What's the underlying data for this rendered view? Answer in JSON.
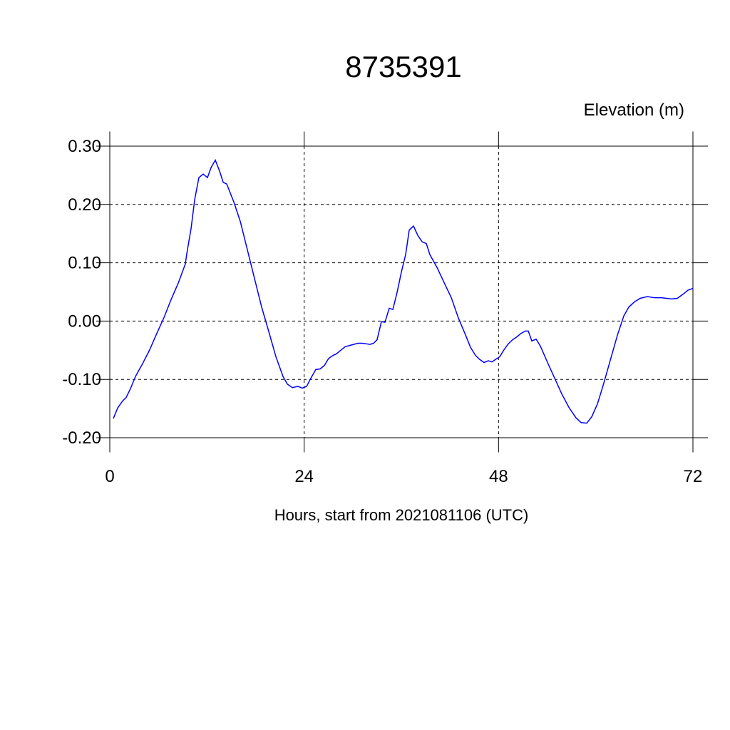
{
  "chart_data": {
    "type": "line",
    "title": "8735391",
    "ylabel": "Elevation (m)",
    "xlabel": "Hours, start from 2021081106 (UTC)",
    "xlim": [
      0,
      72
    ],
    "xticks": [
      0,
      24,
      48,
      72
    ],
    "ylim": [
      -0.225,
      0.325
    ],
    "yticks": [
      {
        "value": -0.2,
        "label": "-0.20"
      },
      {
        "value": -0.1,
        "label": "-0.10"
      },
      {
        "value": 0,
        "label": "0.00"
      },
      {
        "value": 0.1,
        "label": "0.10"
      },
      {
        "value": 0.2,
        "label": "0.20"
      },
      {
        "value": 0.3,
        "label": "0.30"
      }
    ],
    "grid": true,
    "x": [
      0.44,
      0.97,
      1.58,
      2.02,
      2.55,
      3.17,
      4.05,
      4.93,
      5.81,
      6.69,
      7.57,
      8.45,
      9.33,
      9.5,
      10.04,
      10.48,
      11.0,
      11.53,
      12.06,
      12.5,
      13.03,
      13.56,
      14.0,
      14.44,
      15.32,
      16.11,
      16.99,
      17.87,
      18.75,
      19.63,
      20.51,
      21.39,
      21.92,
      22.54,
      23.24,
      23.77,
      24.3,
      24.82,
      25.44,
      25.97,
      26.5,
      27.02,
      27.55,
      28.0,
      28.52,
      29.05,
      29.58,
      30.1,
      30.63,
      31.16,
      31.69,
      32.13,
      32.57,
      33.0,
      33.54,
      33.98,
      34.5,
      34.95,
      35.47,
      36.0,
      36.53,
      36.97,
      37.5,
      38.03,
      38.56,
      39.08,
      39.52,
      40.4,
      41.28,
      42.17,
      43.05,
      43.93,
      44.54,
      45.16,
      45.69,
      46.21,
      46.74,
      47.18,
      47.71,
      48.15,
      48.68,
      49.2,
      49.73,
      50.26,
      50.79,
      51.32,
      51.67,
      52.11,
      52.64,
      53.17,
      54.05,
      54.93,
      55.81,
      56.69,
      57.57,
      58.19,
      58.89,
      59.51,
      60.21,
      60.92,
      61.8,
      62.68,
      63.47,
      64.08,
      64.79,
      65.49,
      66.37,
      67.25,
      68.13,
      68.75,
      69.37,
      70.07,
      70.77,
      71.39,
      72.0
    ],
    "series": [
      {
        "name": "Elevation",
        "color": "#0000ff",
        "values": [
          -0.167,
          -0.149,
          -0.137,
          -0.131,
          -0.116,
          -0.095,
          -0.073,
          -0.049,
          -0.021,
          0.006,
          0.037,
          0.065,
          0.098,
          0.115,
          0.159,
          0.208,
          0.246,
          0.252,
          0.246,
          0.263,
          0.276,
          0.257,
          0.238,
          0.235,
          0.204,
          0.171,
          0.122,
          0.073,
          0.024,
          -0.018,
          -0.061,
          -0.095,
          -0.108,
          -0.114,
          -0.112,
          -0.115,
          -0.112,
          -0.098,
          -0.083,
          -0.082,
          -0.076,
          -0.064,
          -0.059,
          -0.056,
          -0.05,
          -0.044,
          -0.042,
          -0.04,
          -0.038,
          -0.038,
          -0.039,
          -0.04,
          -0.038,
          -0.032,
          -0.001,
          -0.002,
          0.022,
          0.02,
          0.049,
          0.084,
          0.114,
          0.156,
          0.163,
          0.147,
          0.136,
          0.133,
          0.114,
          0.092,
          0.066,
          0.04,
          0.005,
          -0.024,
          -0.045,
          -0.059,
          -0.066,
          -0.071,
          -0.068,
          -0.07,
          -0.065,
          -0.061,
          -0.049,
          -0.039,
          -0.032,
          -0.027,
          -0.021,
          -0.017,
          -0.017,
          -0.034,
          -0.031,
          -0.043,
          -0.071,
          -0.098,
          -0.125,
          -0.148,
          -0.166,
          -0.174,
          -0.175,
          -0.164,
          -0.142,
          -0.11,
          -0.067,
          -0.024,
          0.009,
          0.024,
          0.033,
          0.039,
          0.042,
          0.04,
          0.04,
          0.039,
          0.038,
          0.039,
          0.046,
          0.053,
          0.056
        ]
      }
    ]
  }
}
